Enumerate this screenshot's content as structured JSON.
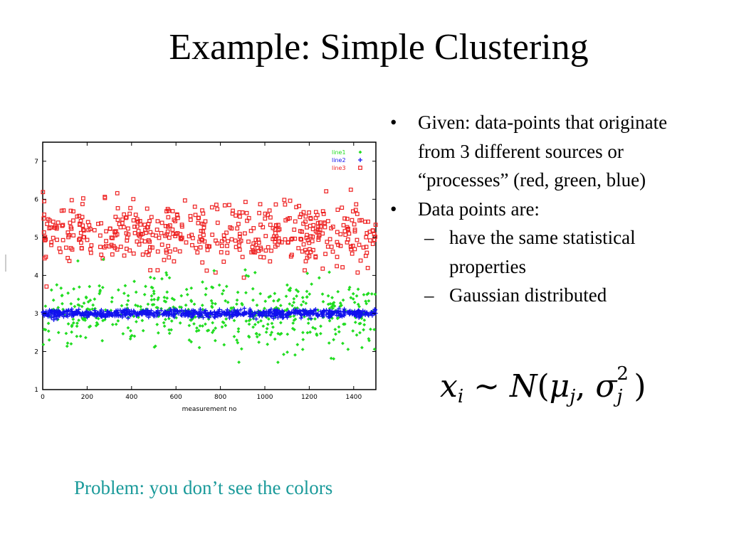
{
  "slide": {
    "title": "Example: Simple Clustering",
    "problem_note": "Problem: you don’t see the colors",
    "formula_label": "x_i ~ N(μ_j, σ_j^2)"
  },
  "bullets": [
    {
      "level": 1,
      "marker": "•",
      "text": "Given: data-points that originate from 3 different sources or “processes” (red, green, blue)"
    },
    {
      "level": 1,
      "marker": "•",
      "text": "Data points are:"
    },
    {
      "level": 2,
      "marker": "–",
      "text": "have the same statistical properties"
    },
    {
      "level": 2,
      "marker": "–",
      "text": "Gaussian distributed"
    }
  ],
  "colors": {
    "red": "#ee2222",
    "green": "#22dd22",
    "blue": "#1111ee",
    "note": "#1a9a9a"
  },
  "chart_data": {
    "type": "scatter",
    "title": "",
    "xlabel": "measurement no",
    "ylabel": "",
    "xlim": [
      0,
      1500
    ],
    "ylim": [
      1,
      7.5
    ],
    "x_ticks": [
      0,
      200,
      400,
      600,
      800,
      1000,
      1200,
      1400
    ],
    "y_ticks": [
      1,
      2,
      3,
      4,
      5,
      6,
      7
    ],
    "legend_position": "top-right",
    "series": [
      {
        "name": "line1",
        "color": "#22dd22",
        "marker": "diamond",
        "n": 500,
        "x_range": [
          0,
          1500
        ],
        "mean": 3.0,
        "std": 0.45
      },
      {
        "name": "line2",
        "color": "#1111ee",
        "marker": "plus",
        "n": 700,
        "x_range": [
          0,
          1500
        ],
        "mean": 3.0,
        "std": 0.05
      },
      {
        "name": "line3",
        "color": "#ee2222",
        "marker": "square",
        "n": 500,
        "x_range": [
          0,
          1500
        ],
        "mean": 5.1,
        "std": 0.4
      }
    ]
  }
}
